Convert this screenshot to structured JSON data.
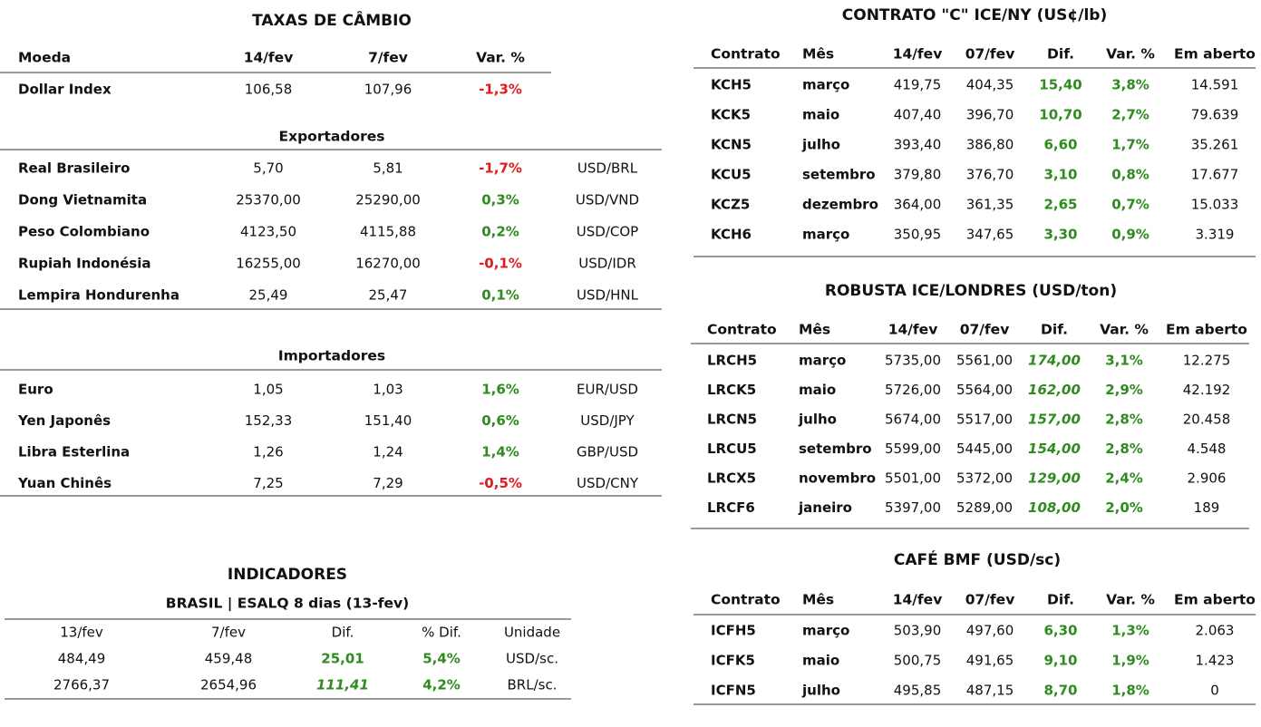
{
  "taxas": {
    "title": "TAXAS DE CÂMBIO",
    "header": [
      "Moeda",
      "14/fev",
      "7/fev",
      "Var. %"
    ],
    "dollar_index": [
      "Dollar Index",
      "106,58",
      "107,96",
      "-1,3%"
    ],
    "exportadores": {
      "title": "Exportadores",
      "rows": [
        [
          "Real Brasileiro",
          "5,70",
          "5,81",
          "-1,7%",
          "USD/BRL"
        ],
        [
          "Dong Vietnamita",
          "25370,00",
          "25290,00",
          "0,3%",
          "USD/VND"
        ],
        [
          "Peso Colombiano",
          "4123,50",
          "4115,88",
          "0,2%",
          "USD/COP"
        ],
        [
          "Rupiah Indonésia",
          "16255,00",
          "16270,00",
          "-0,1%",
          "USD/IDR"
        ],
        [
          "Lempira Hondurenha",
          "25,49",
          "25,47",
          "0,1%",
          "USD/HNL"
        ]
      ]
    },
    "importadores": {
      "title": "Importadores",
      "rows": [
        [
          "Euro",
          "1,05",
          "1,03",
          "1,6%",
          "EUR/USD"
        ],
        [
          "Yen Japonês",
          "152,33",
          "151,40",
          "0,6%",
          "USD/JPY"
        ],
        [
          "Libra Esterlina",
          "1,26",
          "1,24",
          "1,4%",
          "GBP/USD"
        ],
        [
          "Yuan Chinês",
          "7,25",
          "7,29",
          "-0,5%",
          "USD/CNY"
        ]
      ]
    }
  },
  "indicadores": {
    "title": "INDICADORES",
    "subtitle": "BRASIL | ESALQ 8 dias (13-fev)",
    "header": [
      "13/fev",
      "7/fev",
      "Dif.",
      "% Dif.",
      "Unidade"
    ],
    "rows": [
      [
        "484,49",
        "459,48",
        "25,01",
        "5,4%",
        "USD/sc."
      ],
      [
        "2766,37",
        "2654,96",
        "111,41",
        "4,2%",
        "BRL/sc."
      ]
    ]
  },
  "contrato_c": {
    "title": "CONTRATO \"C\" ICE/NY (US¢/lb)",
    "header": [
      "Contrato",
      "Mês",
      "14/fev",
      "07/fev",
      "Dif.",
      "Var. %",
      "Em aberto"
    ],
    "rows": [
      [
        "KCH5",
        "março",
        "419,75",
        "404,35",
        "15,40",
        "3,8%",
        "14.591"
      ],
      [
        "KCK5",
        "maio",
        "407,40",
        "396,70",
        "10,70",
        "2,7%",
        "79.639"
      ],
      [
        "KCN5",
        "julho",
        "393,40",
        "386,80",
        "6,60",
        "1,7%",
        "35.261"
      ],
      [
        "KCU5",
        "setembro",
        "379,80",
        "376,70",
        "3,10",
        "0,8%",
        "17.677"
      ],
      [
        "KCZ5",
        "dezembro",
        "364,00",
        "361,35",
        "2,65",
        "0,7%",
        "15.033"
      ],
      [
        "KCH6",
        "março",
        "350,95",
        "347,65",
        "3,30",
        "0,9%",
        "3.319"
      ]
    ]
  },
  "robusta": {
    "title": "ROBUSTA ICE/LONDRES (USD/ton)",
    "header": [
      "Contrato",
      "Mês",
      "14/fev",
      "07/fev",
      "Dif.",
      "Var. %",
      "Em aberto"
    ],
    "rows": [
      [
        "LRCH5",
        "março",
        "5735,00",
        "5561,00",
        "174,00",
        "3,1%",
        "12.275"
      ],
      [
        "LRCK5",
        "maio",
        "5726,00",
        "5564,00",
        "162,00",
        "2,9%",
        "42.192"
      ],
      [
        "LRCN5",
        "julho",
        "5674,00",
        "5517,00",
        "157,00",
        "2,8%",
        "20.458"
      ],
      [
        "LRCU5",
        "setembro",
        "5599,00",
        "5445,00",
        "154,00",
        "2,8%",
        "4.548"
      ],
      [
        "LRCX5",
        "novembro",
        "5501,00",
        "5372,00",
        "129,00",
        "2,4%",
        "2.906"
      ],
      [
        "LRCF6",
        "janeiro",
        "5397,00",
        "5289,00",
        "108,00",
        "2,0%",
        "189"
      ]
    ]
  },
  "bmf": {
    "title": "CAFÉ BMF (USD/sc)",
    "header": [
      "Contrato",
      "Mês",
      "14/fev",
      "07/fev",
      "Dif.",
      "Var. %",
      "Em aberto"
    ],
    "rows": [
      [
        "ICFH5",
        "março",
        "503,90",
        "497,60",
        "6,30",
        "1,3%",
        "2.063"
      ],
      [
        "ICFK5",
        "maio",
        "500,75",
        "491,65",
        "9,10",
        "1,9%",
        "1.423"
      ],
      [
        "ICFN5",
        "julho",
        "495,85",
        "487,15",
        "8,70",
        "1,8%",
        "0"
      ]
    ]
  }
}
